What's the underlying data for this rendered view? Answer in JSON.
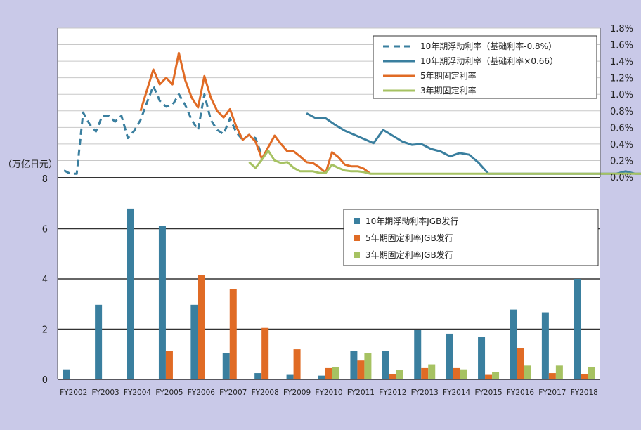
{
  "chart_data": [
    {
      "type": "line",
      "title": "",
      "xlabel": "",
      "ylabel": "",
      "y_axis_side": "right",
      "ylim": [
        0,
        0.018
      ],
      "yticks": [
        "1.8%",
        "1.6%",
        "1.4%",
        "1.2%",
        "1.0%",
        "0.8%",
        "0.6%",
        "0.4%",
        "0.2%",
        "0.0%"
      ],
      "grid": true,
      "legend_position": "top-right",
      "series": [
        {
          "name": "10年期浮动利率（基础利率-0.8%）",
          "color": "#3a7f9f",
          "dash": true,
          "points": [
            [
              0.2,
              0.0008
            ],
            [
              0.4,
              0.0004
            ],
            [
              0.6,
              0.0004
            ],
            [
              0.8,
              0.0078
            ],
            [
              1.0,
              0.0064
            ],
            [
              1.2,
              0.0055
            ],
            [
              1.4,
              0.0074
            ],
            [
              1.6,
              0.0074
            ],
            [
              1.8,
              0.0067
            ],
            [
              2.0,
              0.0074
            ],
            [
              2.2,
              0.0047
            ],
            [
              2.4,
              0.0056
            ],
            [
              2.6,
              0.0069
            ],
            [
              2.8,
              0.009
            ],
            [
              3.0,
              0.011
            ],
            [
              3.2,
              0.0092
            ],
            [
              3.4,
              0.0085
            ],
            [
              3.6,
              0.0087
            ],
            [
              3.8,
              0.01
            ],
            [
              4.0,
              0.0087
            ],
            [
              4.2,
              0.0069
            ],
            [
              4.4,
              0.0057
            ],
            [
              4.6,
              0.01
            ],
            [
              4.8,
              0.0069
            ],
            [
              5.0,
              0.0057
            ],
            [
              5.2,
              0.0052
            ],
            [
              5.4,
              0.0071
            ],
            [
              5.6,
              0.0054
            ],
            [
              5.8,
              0.0045
            ],
            [
              6.0,
              0.0051
            ],
            [
              6.2,
              0.0047
            ],
            [
              6.4,
              0.0026
            ]
          ]
        },
        {
          "name": "10年期浮动利率（基础利率×0.66）",
          "color": "#3a7f9f",
          "dash": false,
          "points": [
            [
              7.8,
              0.0077
            ],
            [
              8.1,
              0.0071
            ],
            [
              8.4,
              0.0071
            ],
            [
              8.7,
              0.0063
            ],
            [
              9.0,
              0.0056
            ],
            [
              9.3,
              0.0051
            ],
            [
              9.6,
              0.0046
            ],
            [
              9.9,
              0.0041
            ],
            [
              10.2,
              0.0057
            ],
            [
              10.5,
              0.005
            ],
            [
              10.8,
              0.0043
            ],
            [
              11.1,
              0.0039
            ],
            [
              11.4,
              0.004
            ],
            [
              11.7,
              0.0034
            ],
            [
              12.0,
              0.0031
            ],
            [
              12.3,
              0.0025
            ],
            [
              12.6,
              0.0029
            ],
            [
              12.9,
              0.0027
            ],
            [
              13.2,
              0.0017
            ],
            [
              13.5,
              0.0004
            ],
            [
              14.0,
              0.0004
            ],
            [
              15.0,
              0.0004
            ],
            [
              16.0,
              0.0004
            ],
            [
              17.0,
              0.0004
            ],
            [
              17.5,
              0.0004
            ],
            [
              17.8,
              0.0007
            ],
            [
              18.1,
              0.0004
            ],
            [
              18.4,
              0.0004
            ]
          ]
        },
        {
          "name": "5年期固定利率",
          "color": "#e06b25",
          "dash": false,
          "points": [
            [
              2.6,
              0.008
            ],
            [
              2.8,
              0.0105
            ],
            [
              3.0,
              0.013
            ],
            [
              3.2,
              0.0112
            ],
            [
              3.4,
              0.012
            ],
            [
              3.6,
              0.0112
            ],
            [
              3.8,
              0.015
            ],
            [
              4.0,
              0.0117
            ],
            [
              4.2,
              0.0096
            ],
            [
              4.4,
              0.0084
            ],
            [
              4.6,
              0.0122
            ],
            [
              4.8,
              0.0096
            ],
            [
              5.0,
              0.008
            ],
            [
              5.2,
              0.0072
            ],
            [
              5.4,
              0.0082
            ],
            [
              5.6,
              0.0061
            ],
            [
              5.8,
              0.0045
            ],
            [
              6.0,
              0.0051
            ],
            [
              6.2,
              0.0043
            ],
            [
              6.4,
              0.0022
            ],
            [
              6.6,
              0.0036
            ],
            [
              6.8,
              0.005
            ],
            [
              7.0,
              0.004
            ],
            [
              7.2,
              0.0031
            ],
            [
              7.4,
              0.0031
            ],
            [
              7.6,
              0.0025
            ],
            [
              7.8,
              0.0018
            ],
            [
              8.0,
              0.0017
            ],
            [
              8.2,
              0.0012
            ],
            [
              8.4,
              0.0005
            ],
            [
              8.6,
              0.003
            ],
            [
              8.8,
              0.0024
            ],
            [
              9.0,
              0.0015
            ],
            [
              9.2,
              0.0013
            ],
            [
              9.4,
              0.0013
            ],
            [
              9.6,
              0.001
            ],
            [
              9.8,
              0.0004
            ]
          ]
        },
        {
          "name": "3年期固定利率",
          "color": "#a6c262",
          "dash": false,
          "points": [
            [
              6.0,
              0.0018
            ],
            [
              6.2,
              0.0011
            ],
            [
              6.4,
              0.0021
            ],
            [
              6.6,
              0.0032
            ],
            [
              6.8,
              0.002
            ],
            [
              7.0,
              0.0017
            ],
            [
              7.2,
              0.0018
            ],
            [
              7.4,
              0.0011
            ],
            [
              7.6,
              0.0007
            ],
            [
              7.8,
              0.0007
            ],
            [
              8.0,
              0.0007
            ],
            [
              8.2,
              0.0005
            ],
            [
              8.4,
              0.0005
            ],
            [
              8.6,
              0.0015
            ],
            [
              8.8,
              0.0011
            ],
            [
              9.0,
              0.0008
            ],
            [
              9.2,
              0.0007
            ],
            [
              9.4,
              0.0007
            ],
            [
              9.6,
              0.0006
            ],
            [
              9.8,
              0.0004
            ],
            [
              11.0,
              0.0004
            ],
            [
              13.0,
              0.0004
            ],
            [
              15.0,
              0.0004
            ],
            [
              17.0,
              0.0004
            ],
            [
              18.4,
              0.0004
            ]
          ]
        }
      ]
    },
    {
      "type": "bar",
      "title": "",
      "xlabel": "",
      "ylabel": "（万亿日元）",
      "ylim": [
        0,
        8
      ],
      "yticks": [
        "8",
        "6",
        "4",
        "2",
        "0"
      ],
      "grid": true,
      "legend_position": "top-right",
      "categories": [
        "FY2002",
        "FY2003",
        "FY2004",
        "FY2005",
        "FY2006",
        "FY2007",
        "FY2008",
        "FY2009",
        "FY2010",
        "FY2011",
        "FY2012",
        "FY2013",
        "FY2014",
        "FY2015",
        "FY2016",
        "FY2017",
        "FY2018"
      ],
      "series": [
        {
          "name": "10年期浮动利率JGB发行",
          "color": "#3a7f9f",
          "values": [
            0.4,
            2.97,
            6.8,
            6.1,
            2.97,
            1.05,
            0.25,
            0.18,
            0.15,
            1.12,
            1.12,
            1.98,
            1.82,
            1.68,
            2.78,
            2.67,
            4.0
          ]
        },
        {
          "name": "5年期固定利率JGB发行",
          "color": "#e06b25",
          "values": [
            0,
            0,
            0,
            1.12,
            4.15,
            3.6,
            2.05,
            1.2,
            0.45,
            0.75,
            0.22,
            0.45,
            0.45,
            0.18,
            1.25,
            0.25,
            0.22
          ]
        },
        {
          "name": "3年期固定利率JGB发行",
          "color": "#a6c262",
          "values": [
            0,
            0,
            0,
            0,
            0,
            0,
            0,
            0,
            0.48,
            1.05,
            0.38,
            0.6,
            0.4,
            0.3,
            0.55,
            0.55,
            0.48
          ]
        }
      ]
    }
  ]
}
